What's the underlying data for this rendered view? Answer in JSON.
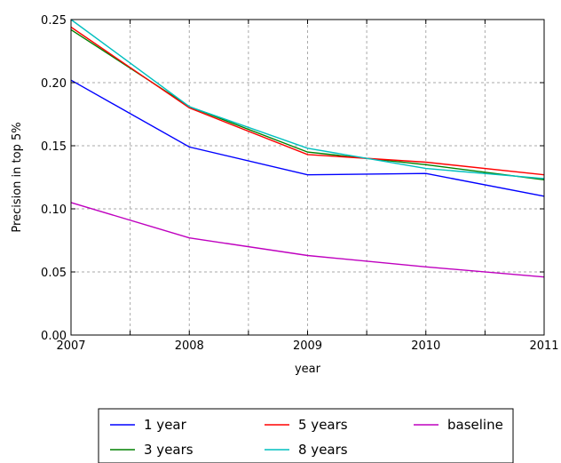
{
  "chart_data": {
    "type": "line",
    "title": "",
    "xlabel": "year",
    "ylabel": "Precision in top 5%",
    "x": [
      2007,
      2008,
      2009,
      2010,
      2011
    ],
    "xlim": [
      2007,
      2011
    ],
    "ylim": [
      0.0,
      0.25
    ],
    "x_ticks": [
      "2007",
      "2008",
      "2009",
      "2010",
      "2011"
    ],
    "y_ticks": [
      "0.00",
      "0.05",
      "0.10",
      "0.15",
      "0.20",
      "0.25"
    ],
    "grid": true,
    "legend_position": "bottom-center",
    "series": [
      {
        "name": "1 year",
        "color": "#0000ff",
        "values": [
          0.202,
          0.149,
          0.127,
          0.128,
          0.11
        ]
      },
      {
        "name": "3 years",
        "color": "#008000",
        "values": [
          0.242,
          0.181,
          0.145,
          0.135,
          0.123
        ]
      },
      {
        "name": "5 years",
        "color": "#ff0000",
        "values": [
          0.244,
          0.18,
          0.143,
          0.137,
          0.127
        ]
      },
      {
        "name": "8 years",
        "color": "#00bfbf",
        "values": [
          0.25,
          0.181,
          0.148,
          0.132,
          0.124
        ]
      },
      {
        "name": "baseline",
        "color": "#bf00bf",
        "values": [
          0.105,
          0.077,
          0.063,
          0.054,
          0.046
        ]
      }
    ]
  }
}
